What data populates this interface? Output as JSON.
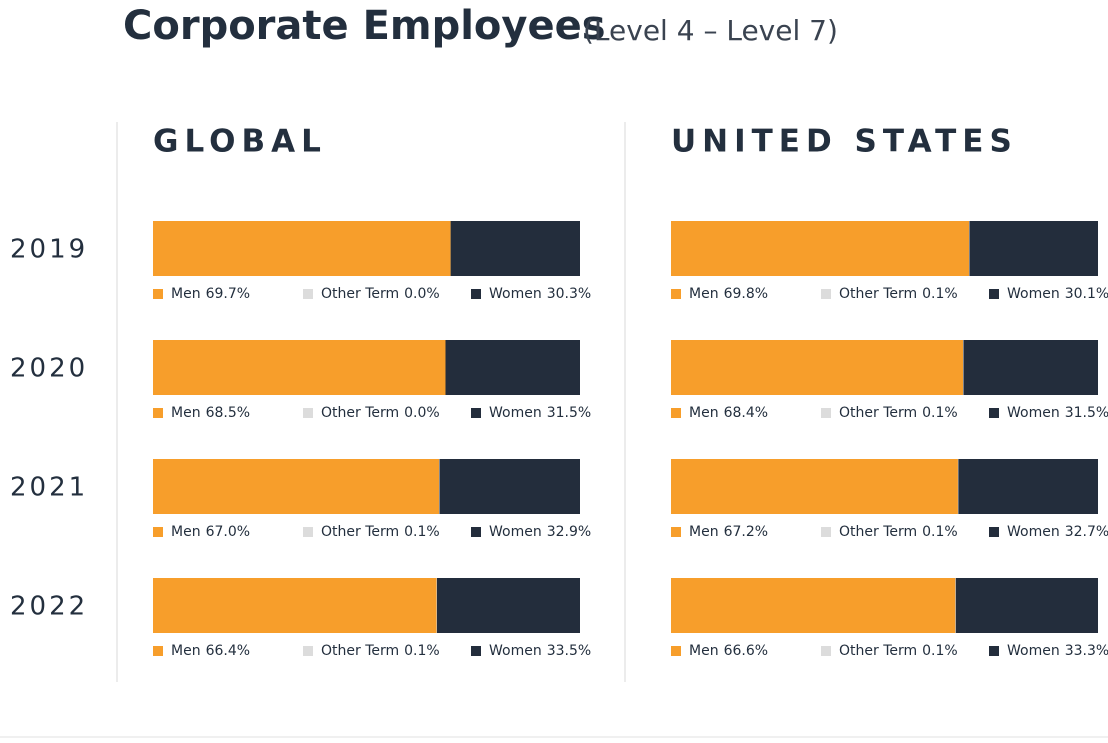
{
  "title": "Corporate Employees",
  "subtitle": "(Level 4 – Level 7)",
  "chart_data": [
    {
      "type": "bar",
      "orientation": "horizontal",
      "stacked": true,
      "title": "GLOBAL",
      "categories": [
        "2019",
        "2020",
        "2021",
        "2022"
      ],
      "xlim": [
        0,
        100
      ],
      "series": [
        {
          "name": "Men",
          "color": "#f79e2b",
          "values": [
            69.7,
            68.5,
            67.0,
            66.4
          ],
          "value_labels": [
            "69.7%",
            "68.5%",
            "67.0%",
            "66.4%"
          ]
        },
        {
          "name": "Other Term",
          "color": "#dcdcdc",
          "values": [
            0.0,
            0.0,
            0.1,
            0.1
          ],
          "value_labels": [
            "0.0%",
            "0.0%",
            "0.1%",
            "0.1%"
          ]
        },
        {
          "name": "Women",
          "color": "#232d3c",
          "values": [
            30.3,
            31.5,
            32.9,
            33.5
          ],
          "value_labels": [
            "30.3%",
            "31.5%",
            "32.9%",
            "33.5%"
          ]
        }
      ]
    },
    {
      "type": "bar",
      "orientation": "horizontal",
      "stacked": true,
      "title": "UNITED STATES",
      "xlim": [
        0,
        100
      ],
      "series": [
        {
          "name": "Men",
          "color": "#f79e2b",
          "values": [
            69.8,
            68.4,
            67.2,
            66.6
          ],
          "value_labels": [
            "69.8%",
            "68.4%",
            "67.2%",
            "66.6%"
          ]
        },
        {
          "name": "Other Term",
          "color": "#dcdcdc",
          "values": [
            0.1,
            0.1,
            0.1,
            0.1
          ],
          "value_labels": [
            "0.1%",
            "0.1%",
            "0.1%",
            "0.1%"
          ]
        },
        {
          "name": "Women",
          "color": "#232d3c",
          "values": [
            30.1,
            31.5,
            32.7,
            33.3
          ],
          "value_labels": [
            "30.1%",
            "31.5%",
            "32.7%",
            "33.3%"
          ]
        }
      ]
    }
  ]
}
